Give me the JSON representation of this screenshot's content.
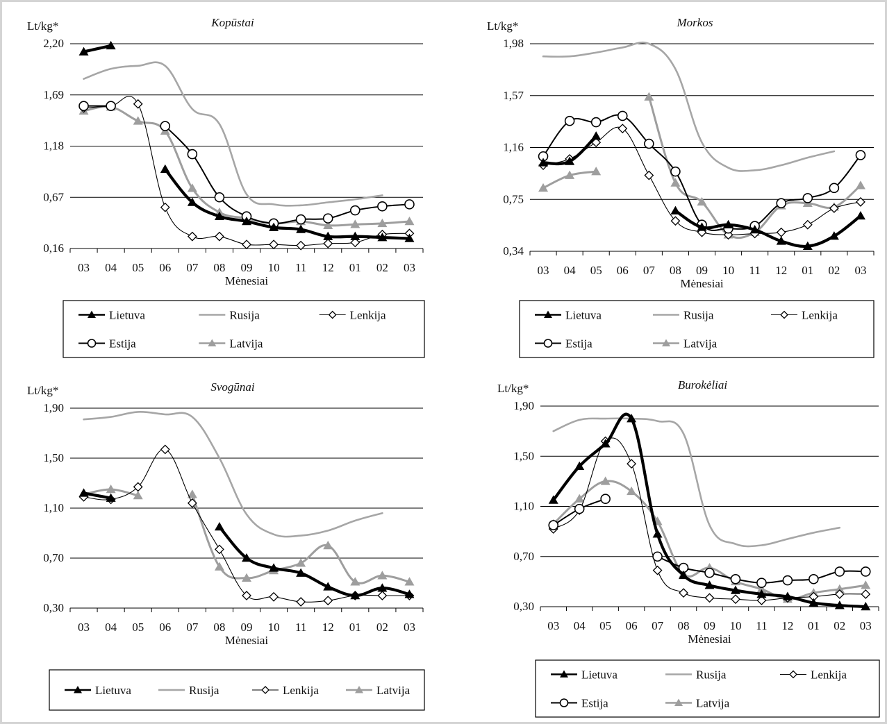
{
  "colors": {
    "lietuva": "#000000",
    "rusija": "#a6a6a6",
    "lenkija": "#000000",
    "estija": "#000000",
    "latvija": "#9e9e9e",
    "grid": "#000000",
    "frame": "#d4d4d4"
  },
  "chart_data": [
    {
      "type": "line",
      "title": "Kopūstai",
      "ylabel": "Lt/kg*",
      "xlabel": "Mėnesiai",
      "categories": [
        "03",
        "04",
        "05",
        "06",
        "07",
        "08",
        "09",
        "10",
        "11",
        "12",
        "01",
        "02",
        "03"
      ],
      "ylim": [
        0.16,
        2.2
      ],
      "yticks": [
        "2,20",
        "1,69",
        "1,18",
        "0,67",
        "0,16"
      ],
      "grid": true,
      "legend": "bottom",
      "legend_rows": [
        [
          "Lietuva",
          "Rusija",
          "Lenkija"
        ],
        [
          "Estija",
          "Latvija"
        ]
      ],
      "series": [
        {
          "name": "Lietuva",
          "style": "lietuva",
          "values": [
            2.12,
            2.18,
            null,
            0.95,
            0.62,
            0.48,
            0.43,
            0.37,
            0.35,
            0.28,
            0.28,
            0.27,
            0.26
          ]
        },
        {
          "name": "Rusija",
          "style": "rusija",
          "values": [
            1.85,
            1.95,
            1.98,
            1.98,
            1.55,
            1.4,
            0.7,
            0.6,
            0.59,
            0.62,
            0.65,
            0.69,
            null
          ]
        },
        {
          "name": "Lenkija",
          "style": "lenkija",
          "values": [
            1.56,
            1.58,
            1.6,
            0.57,
            0.28,
            0.28,
            0.2,
            0.2,
            0.19,
            0.21,
            0.22,
            0.3,
            0.31
          ]
        },
        {
          "name": "Estija",
          "style": "estija",
          "values": [
            1.58,
            1.58,
            null,
            1.38,
            1.1,
            0.67,
            0.48,
            0.41,
            0.45,
            0.46,
            0.54,
            0.58,
            0.6
          ]
        },
        {
          "name": "Latvija",
          "style": "latvija",
          "values": [
            1.53,
            1.57,
            1.43,
            1.33,
            0.76,
            0.52,
            0.46,
            0.41,
            0.43,
            0.39,
            0.4,
            0.41,
            0.43
          ]
        }
      ]
    },
    {
      "type": "line",
      "title": "Morkos",
      "ylabel": "Lt/kg*",
      "xlabel": "Mėnesiai",
      "categories": [
        "03",
        "04",
        "05",
        "06",
        "07",
        "08",
        "09",
        "10",
        "11",
        "12",
        "01",
        "02",
        "03"
      ],
      "ylim": [
        0.34,
        1.98
      ],
      "yticks": [
        "1,98",
        "1,57",
        "1,16",
        "0,75",
        "0,34"
      ],
      "grid": true,
      "legend": "bottom",
      "legend_rows": [
        [
          "Lietuva",
          "Rusija",
          "Lenkija"
        ],
        [
          "Estija",
          "Latvija"
        ]
      ],
      "series": [
        {
          "name": "Lietuva",
          "style": "lietuva",
          "values": [
            1.04,
            1.05,
            1.25,
            null,
            null,
            0.66,
            0.53,
            0.55,
            0.51,
            0.42,
            0.38,
            0.46,
            0.62
          ]
        },
        {
          "name": "Rusija",
          "style": "rusija",
          "values": [
            1.88,
            1.88,
            1.91,
            1.95,
            1.98,
            1.78,
            1.2,
            1.0,
            0.98,
            1.02,
            1.08,
            1.13,
            null
          ]
        },
        {
          "name": "Lenkija",
          "style": "lenkija",
          "values": [
            1.02,
            1.07,
            1.2,
            1.31,
            0.94,
            0.58,
            0.49,
            0.47,
            0.48,
            0.49,
            0.55,
            0.68,
            0.73
          ]
        },
        {
          "name": "Estija",
          "style": "estija",
          "values": [
            1.09,
            1.37,
            1.36,
            1.41,
            1.19,
            0.97,
            0.55,
            0.52,
            0.54,
            0.72,
            0.76,
            0.84,
            1.1
          ]
        },
        {
          "name": "Latvija",
          "style": "latvija",
          "values": [
            0.84,
            0.94,
            0.97,
            null,
            1.56,
            0.88,
            0.73,
            0.47,
            0.49,
            0.7,
            0.72,
            0.69,
            0.86
          ]
        }
      ]
    },
    {
      "type": "line",
      "title": "Svogūnai",
      "ylabel": "Lt/kg*",
      "xlabel": "Mėnesiai",
      "categories": [
        "03",
        "04",
        "05",
        "06",
        "07",
        "08",
        "09",
        "10",
        "11",
        "12",
        "01",
        "02",
        "03"
      ],
      "ylim": [
        0.3,
        1.9
      ],
      "yticks": [
        "1,90",
        "1,50",
        "1,10",
        "0,70",
        "0,30"
      ],
      "grid": true,
      "legend": "bottom",
      "legend_rows": [
        [
          "Lietuva",
          "Rusija",
          "Lenkija",
          "Latvija"
        ]
      ],
      "series": [
        {
          "name": "Lietuva",
          "style": "lietuva",
          "values": [
            1.22,
            1.18,
            null,
            null,
            null,
            0.95,
            0.7,
            0.62,
            0.58,
            0.47,
            0.4,
            0.46,
            0.41
          ]
        },
        {
          "name": "Rusija",
          "style": "rusija",
          "values": [
            1.81,
            1.83,
            1.87,
            1.85,
            1.83,
            1.5,
            1.05,
            0.89,
            0.88,
            0.92,
            1.0,
            1.06,
            null
          ]
        },
        {
          "name": "Lenkija",
          "style": "lenkija",
          "values": [
            1.19,
            1.17,
            1.27,
            1.57,
            1.14,
            0.77,
            0.4,
            0.39,
            0.35,
            0.36,
            0.4,
            0.4,
            0.4
          ]
        },
        {
          "name": "Latvija",
          "style": "latvija",
          "values": [
            1.21,
            1.25,
            1.2,
            null,
            1.21,
            0.63,
            0.54,
            0.6,
            0.66,
            0.8,
            0.51,
            0.56,
            0.51
          ]
        }
      ]
    },
    {
      "type": "line",
      "title": "Burokėliai",
      "ylabel": "Lt/kg*",
      "xlabel": "Mėnesiai",
      "categories": [
        "03",
        "04",
        "05",
        "06",
        "07",
        "08",
        "09",
        "10",
        "11",
        "12",
        "01",
        "02",
        "03"
      ],
      "ylim": [
        0.3,
        1.9
      ],
      "yticks": [
        "1,90",
        "1,50",
        "1,10",
        "0,70",
        "0,30"
      ],
      "grid": true,
      "legend": "bottom",
      "legend_rows": [
        [
          "Lietuva",
          "Rusija",
          "Lenkija"
        ],
        [
          "Estija",
          "Latvija"
        ]
      ],
      "series": [
        {
          "name": "Lietuva",
          "style": "lietuva",
          "values": [
            1.15,
            1.42,
            1.6,
            1.8,
            0.88,
            0.55,
            0.47,
            0.43,
            0.4,
            0.38,
            0.33,
            0.31,
            0.3
          ]
        },
        {
          "name": "Rusija",
          "style": "rusija",
          "values": [
            1.7,
            1.79,
            1.8,
            1.8,
            1.78,
            1.68,
            0.95,
            0.8,
            0.79,
            0.84,
            0.89,
            0.93,
            null
          ]
        },
        {
          "name": "Lenkija",
          "style": "lenkija",
          "values": [
            0.92,
            1.07,
            1.62,
            1.44,
            0.59,
            0.41,
            0.37,
            0.36,
            0.35,
            0.37,
            0.38,
            0.4,
            0.4
          ]
        },
        {
          "name": "Estija",
          "style": "estija",
          "values": [
            0.95,
            1.08,
            1.16,
            null,
            0.7,
            0.61,
            0.57,
            0.52,
            0.49,
            0.51,
            0.52,
            0.58,
            0.58
          ]
        },
        {
          "name": "Latvija",
          "style": "latvija",
          "values": [
            0.96,
            1.16,
            1.3,
            1.22,
            0.98,
            0.56,
            0.61,
            0.5,
            0.44,
            0.36,
            0.41,
            0.44,
            0.47
          ]
        }
      ]
    }
  ]
}
